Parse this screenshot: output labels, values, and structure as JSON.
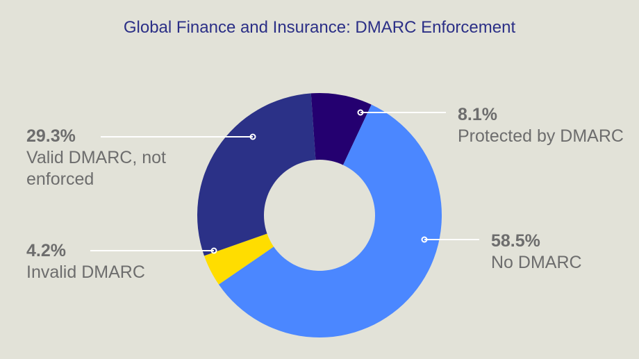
{
  "chart_data": {
    "type": "pie",
    "title": "Global Finance and Insurance: DMARC Enforcement",
    "slices": [
      {
        "label_pct": "8.1%",
        "label_name": "Protected by DMARC",
        "value": 8.1,
        "color": "#240070"
      },
      {
        "label_pct": "58.5%",
        "label_name": "No DMARC",
        "value": 58.5,
        "color": "#4b87ff"
      },
      {
        "label_pct": "4.2%",
        "label_name": "Invalid DMARC",
        "value": 4.2,
        "color": "#ffdd00"
      },
      {
        "label_pct": "29.3%",
        "label_name": "Valid DMARC, not enforced",
        "value": 29.3,
        "color": "#2b3187"
      }
    ],
    "donut": true
  }
}
